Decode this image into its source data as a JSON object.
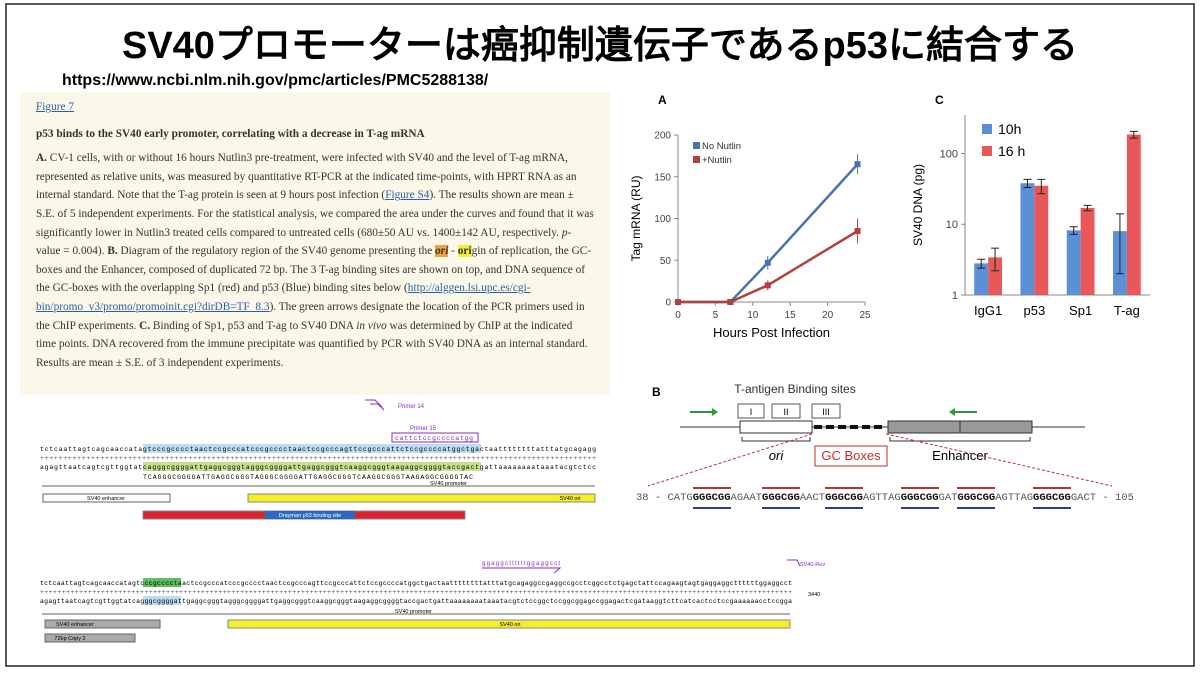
{
  "slide": {
    "title": "SV40プロモーターは癌抑制遺伝子であるp53に結合する",
    "url": "https://www.ncbi.nlm.nih.gov/pmc/articles/PMC5288138/"
  },
  "caption": {
    "figure_link": "Figure 7",
    "heading": "p53 binds to the SV40 early promoter, correlating with a decrease in T-ag mRNA",
    "runs": [
      "A.",
      " CV-1 cells, with or without 16 hours Nutlin3 pre-treatment, were infected with SV40 and the level of T-ag mRNA, represented as relative units, was measured by quantitative RT-PCR at the indicated time-points, with HPRT RNA as an internal standard. Note that the T-ag protein is seen at 9 hours post infection (",
      "Figure S4",
      "). The results shown are mean ± S.E. of 5 independent experiments. For the statistical analysis, we compared the area under the curves and found that it was significantly lower in Nutlin3 treated cells compared to untreated cells (680±50 AU vs. 1400±142 AU, respectively. ",
      "p",
      "-value = 0.004). ",
      "B.",
      " Diagram of the regulatory region of the SV40 genome presenting the ",
      "ori",
      " - ",
      "ori",
      "gin of replication, the GC-boxes and the Enhancer, composed of duplicated 72 bp. The 3 T-ag binding sites are shown on top, and DNA sequence of the GC-boxes with the overlapping Sp1 (red) and p53 (Blue) binding sites below (",
      "http://alggen.lsi.upc.es/cgi-bin/promo_v3/promo/promoinit.cgi?dirDB=TF_8.3",
      "). The green arrows designate the location of the PCR primers used in the ChIP experiments. ",
      "C.",
      " Binding of Sp1, p53 and T-ag to SV40 DNA ",
      "in vivo",
      " was determined by ChIP at the indicated time points. DNA recovered from the immune precipitate was quantified by PCR with SV40 DNA as an internal standard. Results are mean ± S.E. of 3 independent experiments."
    ]
  },
  "chart_data": [
    {
      "type": "line",
      "label": "A",
      "x": [
        0,
        7,
        12,
        24
      ],
      "xlabel": "Hours Post Infection",
      "ylabel": "Tag mRNA   (RU)",
      "xlim": [
        0,
        25
      ],
      "xticks": [
        0,
        5,
        10,
        15,
        20,
        25
      ],
      "ylim": [
        0,
        200
      ],
      "yticks": [
        0,
        50,
        100,
        150,
        200
      ],
      "legend": "top-left",
      "series": [
        {
          "name": "No Nutlin",
          "color": "#4a72b0",
          "values": [
            0,
            0,
            47,
            165
          ],
          "errors": [
            null,
            null,
            8,
            12
          ]
        },
        {
          "name": "+Nutlin",
          "color": "#b0413e",
          "values": [
            0,
            0,
            20,
            85
          ],
          "errors": [
            null,
            null,
            6,
            15
          ]
        }
      ]
    },
    {
      "type": "bar",
      "label": "C",
      "categories": [
        "IgG1",
        "p53",
        "Sp1",
        "T-ag"
      ],
      "ylabel": "SV40 DNA (pg)",
      "log_scale": true,
      "ylim": [
        1,
        350
      ],
      "yticks": [
        1,
        10,
        100
      ],
      "legend": "top-left",
      "series": [
        {
          "name": "10h",
          "color": "#5b8fd6",
          "values": [
            2.8,
            38,
            8.2,
            8
          ],
          "errors": [
            0.4,
            5,
            1,
            6
          ]
        },
        {
          "name": "16 h",
          "color": "#e8585a",
          "values": [
            3.4,
            35,
            17,
            185
          ],
          "errors": [
            1.2,
            8,
            1.5,
            20
          ]
        }
      ]
    }
  ],
  "diagram": {
    "label": "B",
    "sites_title": "T-antigen Binding sites",
    "sites": [
      "I",
      "II",
      "III"
    ],
    "ori": "ori",
    "gc_boxes": "GC Boxes",
    "enhancer": "Enhancer",
    "sequence": [
      "38 - CATG",
      "GGGCGG",
      "AGAAT",
      "GGGCGG",
      "AACT",
      "GGGCGG",
      "AGTTAG",
      "GGGCGG",
      "GAT",
      "GGGCGG",
      "AGTTAG",
      "GGGCGG",
      "GACT - 105"
    ]
  },
  "maps": [
    {
      "primer_a": "Primer 14",
      "primer_b": "Primer 15",
      "primer_seq": "cattctccgccccatgg",
      "top": "tctcaattagtcagcaaccatagtcccgcccctaactccgcccatcccgcccctaactccgcccagttccgcccattctccgccccatggctgactaattttttttatttatgcagagg",
      "ruler": "++++++++++++++++++++++++++++++++++++++++++++++++++++++++++++++++++++++++++++++++++++++++++++++++++++++++++++++++++++++++",
      "bottom": "agagttaatcagtcgttggtatcagggcggggattgaggcgggtagggcggggattgaggcgggtcaaggcgggtaagaggcggggtaccgactgattaaaaaaaataaatacgtctcc",
      "translation": "TCAGGGCGGGGATTGAGGCGGGTAGGGCGGGGATTGAGGCGGGTCAAGGCGGGTAAGAGGCGGGGTAC",
      "promoter": "SV40 promoter",
      "enhancer": "SV40 enhancer",
      "ori": "SV40 ori",
      "site": "Drayman p53 binding site"
    },
    {
      "primer_seq": "ggaggcttttttggaggcct",
      "primer": "SV40-Rev",
      "top": "tctcaattagtcagcaaccatagtcccgcccctaactccgcccatcccgcccctaactccgcccagttccgcccattctccgccccatggctgactaattttttttatttatgcagaggccgaggccgcctcggcctctgagctattccagaagtagtgaggaggcttttttggaggcct",
      "ruler": "+++++++++++++++++++++++++++++++++++++++++++++++++++++++++++++++++++++++++++++++++++++++++++++++++++++++++++++++++++++++++++++++++++++++++++++++++++++++++++++++++++++++++++++",
      "bottom": "agagttaatcagtcgttggtatcagggcggggattgaggcgggtagggcggggattgaggcgggtcaaggcgggtaagaggcggggtaccgactgattaaaaaaaataaatacgtctccggctccggcggagccggagactcgataaggtcttcatcactcctccgaaaaaacctccgga",
      "position": "3440",
      "promoter": "SV40 promoter",
      "enhancer": "SV40 enhancer",
      "ori": "SV40 ori",
      "copy": "72bp Copy 2"
    }
  ]
}
